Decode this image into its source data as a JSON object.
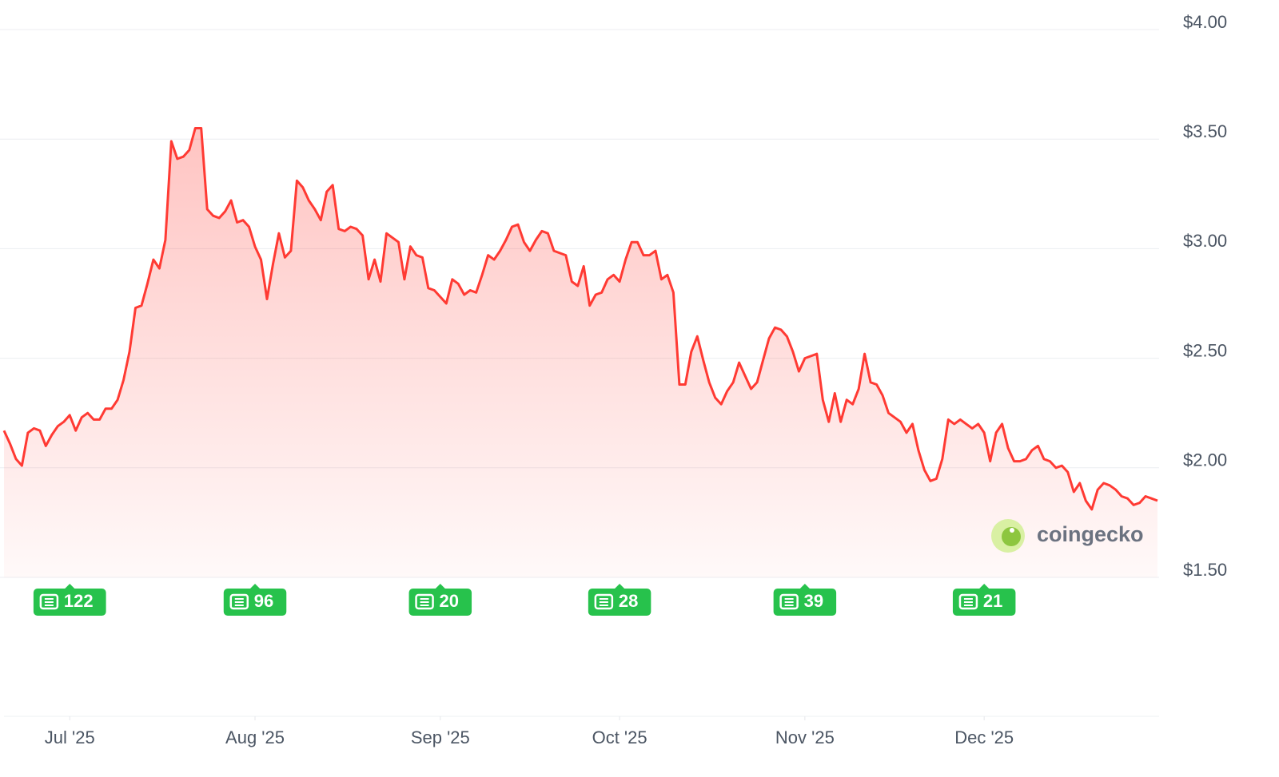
{
  "chart_data": {
    "type": "line",
    "color": "#ff3a33",
    "values": [
      2.17,
      2.11,
      2.04,
      2.01,
      2.16,
      2.18,
      2.17,
      2.1,
      2.15,
      2.19,
      2.21,
      2.24,
      2.17,
      2.23,
      2.25,
      2.22,
      2.22,
      2.27,
      2.27,
      2.31,
      2.4,
      2.53,
      2.73,
      2.74,
      2.84,
      2.95,
      2.91,
      3.04,
      3.49,
      3.41,
      3.42,
      3.45,
      3.55,
      3.55,
      3.18,
      3.15,
      3.14,
      3.17,
      3.22,
      3.12,
      3.13,
      3.1,
      3.01,
      2.95,
      2.77,
      2.93,
      3.07,
      2.96,
      2.99,
      3.31,
      3.28,
      3.22,
      3.18,
      3.13,
      3.26,
      3.29,
      3.09,
      3.08,
      3.1,
      3.09,
      3.06,
      2.86,
      2.95,
      2.85,
      3.07,
      3.05,
      3.03,
      2.86,
      3.01,
      2.97,
      2.96,
      2.82,
      2.81,
      2.78,
      2.75,
      2.86,
      2.84,
      2.79,
      2.81,
      2.8,
      2.88,
      2.97,
      2.95,
      2.99,
      3.04,
      3.1,
      3.11,
      3.03,
      2.99,
      3.04,
      3.08,
      3.07,
      2.99,
      2.98,
      2.97,
      2.85,
      2.83,
      2.92,
      2.74,
      2.79,
      2.8,
      2.86,
      2.88,
      2.85,
      2.95,
      3.03,
      3.03,
      2.97,
      2.97,
      2.99,
      2.86,
      2.88,
      2.8,
      2.38,
      2.38,
      2.53,
      2.6,
      2.49,
      2.39,
      2.32,
      2.29,
      2.35,
      2.39,
      2.48,
      2.42,
      2.36,
      2.39,
      2.49,
      2.59,
      2.64,
      2.63,
      2.6,
      2.53,
      2.44,
      2.5,
      2.51,
      2.52,
      2.31,
      2.21,
      2.34,
      2.21,
      2.31,
      2.29,
      2.36,
      2.52,
      2.39,
      2.38,
      2.33,
      2.25,
      2.23,
      2.21,
      2.16,
      2.2,
      2.08,
      1.99,
      1.94,
      1.95,
      2.04,
      2.22,
      2.2,
      2.22,
      2.2,
      2.18,
      2.2,
      2.16,
      2.03,
      2.16,
      2.2,
      2.09,
      2.03,
      2.03,
      2.04,
      2.08,
      2.1,
      2.04,
      2.03,
      2.0,
      2.01,
      1.98,
      1.89,
      1.93,
      1.85,
      1.81,
      1.9,
      1.93,
      1.92,
      1.9,
      1.87,
      1.86,
      1.83,
      1.84,
      1.87,
      1.86,
      1.85
    ],
    "ylim": [
      1.5,
      4
    ],
    "yticks": [
      {
        "value": 4,
        "label": "$4.00"
      },
      {
        "value": 3.5,
        "label": "$3.50"
      },
      {
        "value": 3,
        "label": "$3.00"
      },
      {
        "value": 2.5,
        "label": "$2.50"
      },
      {
        "value": 2,
        "label": "$2.00"
      },
      {
        "value": 1.5,
        "label": "$1.50"
      }
    ],
    "xlim": [
      0,
      193
    ],
    "xticks": [
      {
        "value": 11,
        "label": "Jul '25"
      },
      {
        "value": 42,
        "label": "Aug '25"
      },
      {
        "value": 73,
        "label": "Sep '25"
      },
      {
        "value": 103,
        "label": "Oct '25"
      },
      {
        "value": 134,
        "label": "Nov '25"
      },
      {
        "value": 164,
        "label": "Dec '25"
      }
    ],
    "news_counts": [
      122,
      96,
      20,
      28,
      39,
      21
    ],
    "grid": true,
    "watermark": "coingecko"
  }
}
